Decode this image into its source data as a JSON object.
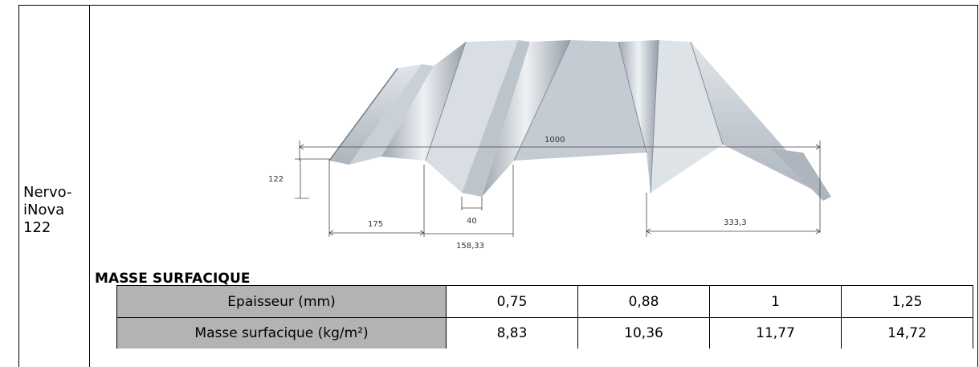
{
  "product": {
    "name_lines": [
      "Nervo-",
      "iNova",
      "122"
    ]
  },
  "drawing": {
    "dim_total_width": "1000",
    "dim_height": "122",
    "dim_pan_width": "175",
    "dim_rib_bottom": "40",
    "dim_rib_top": "158,33",
    "dim_pitch": "333,3"
  },
  "section_title": "MASSE SURFACIQUE",
  "table": {
    "rows": [
      {
        "label": "Epaisseur (mm)",
        "values": [
          "0,75",
          "0,88",
          "1",
          "1,25"
        ]
      },
      {
        "label": "Masse surfacique (kg/m²)",
        "values": [
          "8,83",
          "10,36",
          "11,77",
          "14,72"
        ]
      }
    ]
  }
}
